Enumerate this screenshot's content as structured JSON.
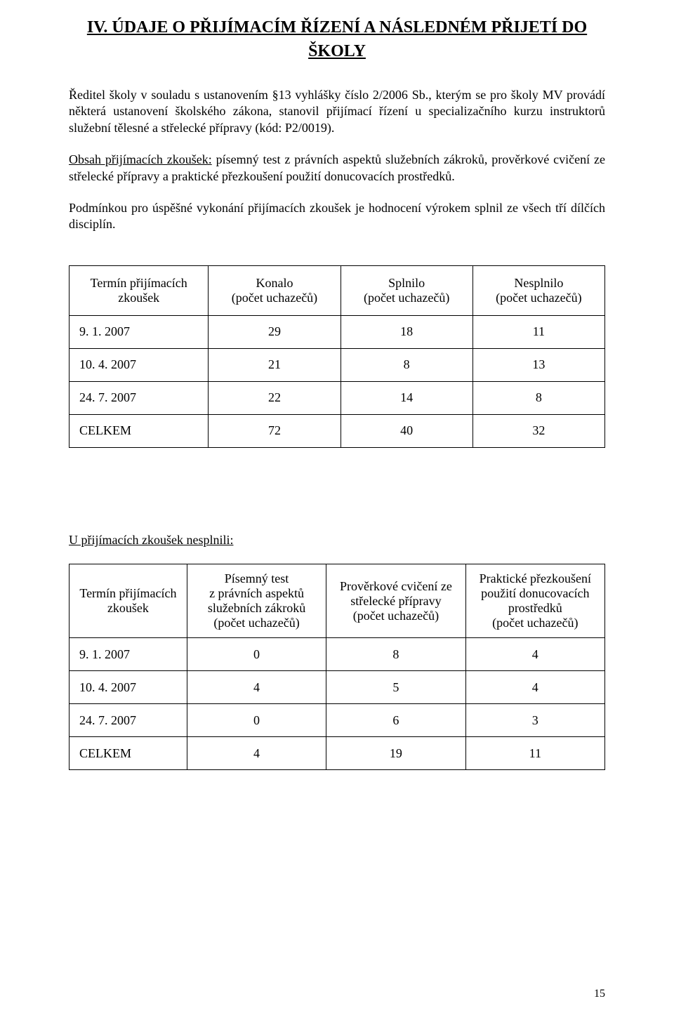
{
  "title_line1": "IV. ÚDAJE O PŘIJÍMACÍM ŘÍZENÍ A NÁSLEDNÉM PŘIJETÍ DO",
  "title_line2": "ŠKOLY",
  "paragraph1": "Ředitel školy v souladu s ustanovením §13 vyhlášky číslo 2/2006 Sb., kterým se pro školy MV provádí některá ustanovení školského zákona, stanovil přijímací řízení u specializačního kurzu instruktorů služební tělesné a střelecké přípravy (kód: P2/0019).",
  "paragraph2_u": "Obsah přijímacích zkoušek:",
  "paragraph2_rest": " písemný test z právních aspektů služebních zákroků, prověrkové cvičení ze střelecké přípravy a praktické přezkoušení použití donucovacích prostředků.",
  "paragraph3": "Podmínkou pro úspěšné vykonání přijímacích zkoušek je hodnocení výrokem splnil ze všech tří dílčích disciplín.",
  "table1": {
    "headers": {
      "c1a": "Termín přijímacích",
      "c1b": "zkoušek",
      "c2a": "Konalo",
      "c2b": "(počet uchazečů)",
      "c3a": "Splnilo",
      "c3b": "(počet uchazečů)",
      "c4a": "Nesplnilo",
      "c4b": "(počet uchazečů)"
    },
    "rows": [
      {
        "c1": "9. 1. 2007",
        "c2": "29",
        "c3": "18",
        "c4": "11"
      },
      {
        "c1": "10. 4. 2007",
        "c2": "21",
        "c3": "8",
        "c4": "13"
      },
      {
        "c1": "24. 7. 2007",
        "c2": "22",
        "c3": "14",
        "c4": "8"
      },
      {
        "c1": "CELKEM",
        "c2": "72",
        "c3": "40",
        "c4": "32"
      }
    ]
  },
  "subheading": "U přijímacích zkoušek nesplnili:",
  "table2": {
    "headers": {
      "c1a": "Termín přijímacích",
      "c1b": "zkoušek",
      "c2a": "Písemný test",
      "c2b": "z právních aspektů",
      "c2c": "služebních zákroků",
      "c2d": "(počet uchazečů)",
      "c3a": "Prověrkové cvičení ze",
      "c3b": "střelecké přípravy",
      "c3c": "(počet uchazečů)",
      "c4a": "Praktické přezkoušení",
      "c4b": "použití donucovacích",
      "c4c": "prostředků",
      "c4d": "(počet uchazečů)"
    },
    "rows": [
      {
        "c1": "9. 1. 2007",
        "c2": "0",
        "c3": "8",
        "c4": "4"
      },
      {
        "c1": "10. 4. 2007",
        "c2": "4",
        "c3": "5",
        "c4": "4"
      },
      {
        "c1": "24. 7. 2007",
        "c2": "0",
        "c3": "6",
        "c4": "3"
      },
      {
        "c1": "CELKEM",
        "c2": "4",
        "c3": "19",
        "c4": "11"
      }
    ]
  },
  "pageno": "15"
}
